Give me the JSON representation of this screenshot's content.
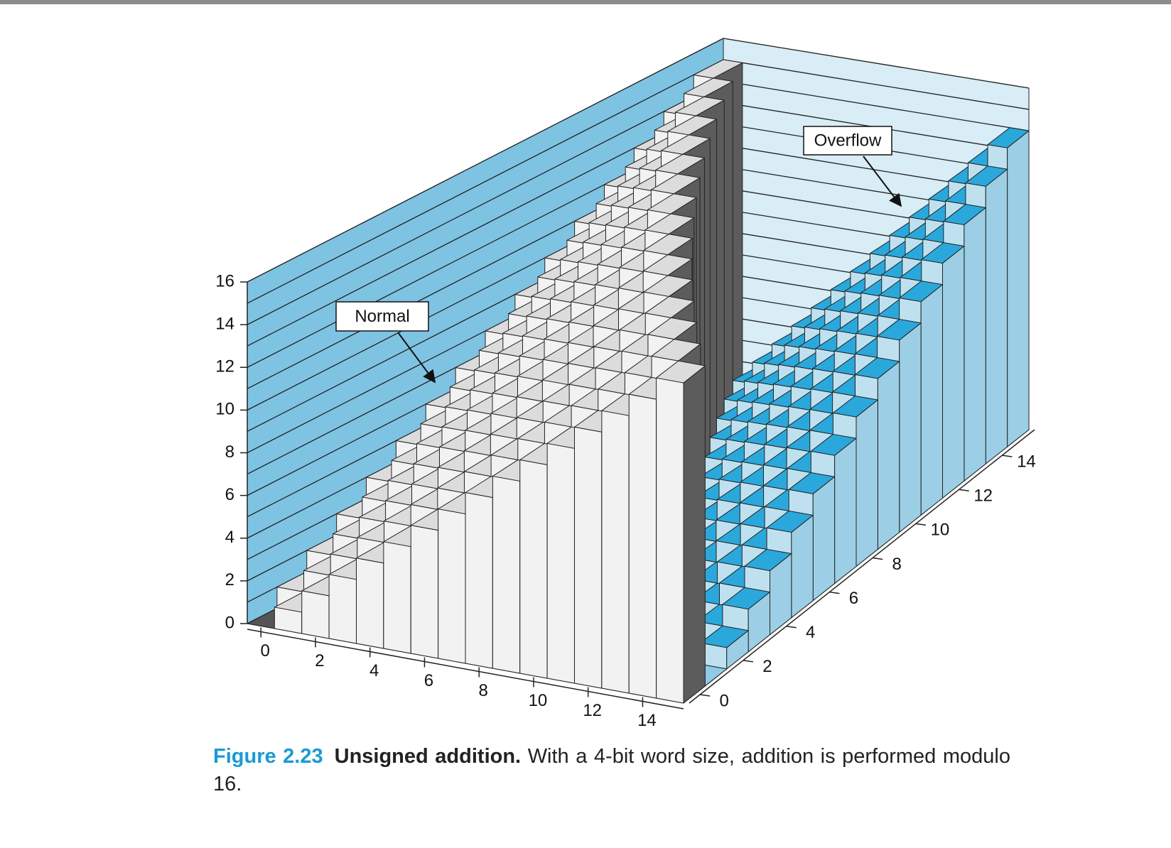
{
  "chart_data": {
    "type": "bar3d",
    "x": [
      0,
      1,
      2,
      3,
      4,
      5,
      6,
      7,
      8,
      9,
      10,
      11,
      12,
      13,
      14,
      15
    ],
    "y": [
      0,
      1,
      2,
      3,
      4,
      5,
      6,
      7,
      8,
      9,
      10,
      11,
      12,
      13,
      14,
      15
    ],
    "values": [
      [
        0,
        1,
        2,
        3,
        4,
        5,
        6,
        7,
        8,
        9,
        10,
        11,
        12,
        13,
        14,
        15
      ],
      [
        1,
        2,
        3,
        4,
        5,
        6,
        7,
        8,
        9,
        10,
        11,
        12,
        13,
        14,
        15,
        0
      ],
      [
        2,
        3,
        4,
        5,
        6,
        7,
        8,
        9,
        10,
        11,
        12,
        13,
        14,
        15,
        0,
        1
      ],
      [
        3,
        4,
        5,
        6,
        7,
        8,
        9,
        10,
        11,
        12,
        13,
        14,
        15,
        0,
        1,
        2
      ],
      [
        4,
        5,
        6,
        7,
        8,
        9,
        10,
        11,
        12,
        13,
        14,
        15,
        0,
        1,
        2,
        3
      ],
      [
        5,
        6,
        7,
        8,
        9,
        10,
        11,
        12,
        13,
        14,
        15,
        0,
        1,
        2,
        3,
        4
      ],
      [
        6,
        7,
        8,
        9,
        10,
        11,
        12,
        13,
        14,
        15,
        0,
        1,
        2,
        3,
        4,
        5
      ],
      [
        7,
        8,
        9,
        10,
        11,
        12,
        13,
        14,
        15,
        0,
        1,
        2,
        3,
        4,
        5,
        6
      ],
      [
        8,
        9,
        10,
        11,
        12,
        13,
        14,
        15,
        0,
        1,
        2,
        3,
        4,
        5,
        6,
        7
      ],
      [
        9,
        10,
        11,
        12,
        13,
        14,
        15,
        0,
        1,
        2,
        3,
        4,
        5,
        6,
        7,
        8
      ],
      [
        10,
        11,
        12,
        13,
        14,
        15,
        0,
        1,
        2,
        3,
        4,
        5,
        6,
        7,
        8,
        9
      ],
      [
        11,
        12,
        13,
        14,
        15,
        0,
        1,
        2,
        3,
        4,
        5,
        6,
        7,
        8,
        9,
        10
      ],
      [
        12,
        13,
        14,
        15,
        0,
        1,
        2,
        3,
        4,
        5,
        6,
        7,
        8,
        9,
        10,
        11
      ],
      [
        13,
        14,
        15,
        0,
        1,
        2,
        3,
        4,
        5,
        6,
        7,
        8,
        9,
        10,
        11,
        12
      ],
      [
        14,
        15,
        0,
        1,
        2,
        3,
        4,
        5,
        6,
        7,
        8,
        9,
        10,
        11,
        12,
        13
      ],
      [
        15,
        0,
        1,
        2,
        3,
        4,
        5,
        6,
        7,
        8,
        9,
        10,
        11,
        12,
        13,
        14
      ]
    ],
    "colors": {
      "normal": "#dcdcdc",
      "overflow": "#2aa8dc",
      "left_wall": "#7fc3e3",
      "back_wall": "#d8edf6"
    },
    "xlim": [
      -0.5,
      15.5
    ],
    "ylim": [
      -0.5,
      15.5
    ],
    "zlim": [
      0,
      16
    ],
    "xticks": [
      0,
      2,
      4,
      6,
      8,
      10,
      12,
      14
    ],
    "yticks": [
      0,
      2,
      4,
      6,
      8,
      10,
      12,
      14
    ],
    "zticks": [
      0,
      2,
      4,
      6,
      8,
      10,
      12,
      14,
      16
    ],
    "zgrid": [
      0,
      1,
      2,
      3,
      4,
      5,
      6,
      7,
      8,
      9,
      10,
      11,
      12,
      13,
      14,
      15,
      16
    ],
    "annotations": [
      {
        "text": "Normal"
      },
      {
        "text": "Overflow"
      }
    ],
    "caption": {
      "label": "Figure 2.23",
      "title": "Unsigned addition.",
      "text": "With a 4-bit word size, addition is performed modulo 16."
    }
  }
}
